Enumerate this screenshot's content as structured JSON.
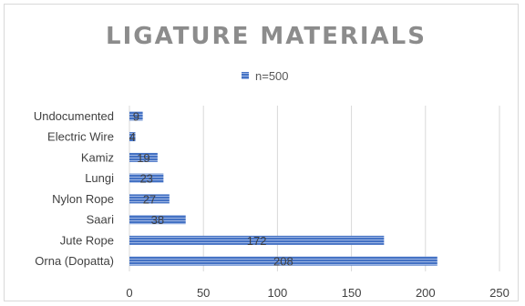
{
  "chart_data": {
    "type": "bar",
    "orientation": "horizontal",
    "title": "LIGATURE MATERIALS",
    "legend": {
      "position": "top",
      "entries": [
        "n=500"
      ]
    },
    "categories": [
      "Orna (Dopatta)",
      "Jute Rope",
      "Saari",
      "Nylon Rope",
      "Lungi",
      "Kamiz",
      "Electric Wire",
      "Undocumented"
    ],
    "series": [
      {
        "name": "n=500",
        "values": [
          208,
          172,
          38,
          27,
          23,
          19,
          4,
          9
        ],
        "color": "#4472c4"
      }
    ],
    "data_labels": [
      "208",
      "172",
      "38",
      "27",
      "23",
      "19",
      "4",
      "9"
    ],
    "x_ticks": [
      "0",
      "50",
      "100",
      "150",
      "200",
      "250"
    ],
    "xlim": [
      0,
      250
    ],
    "grid": true
  }
}
